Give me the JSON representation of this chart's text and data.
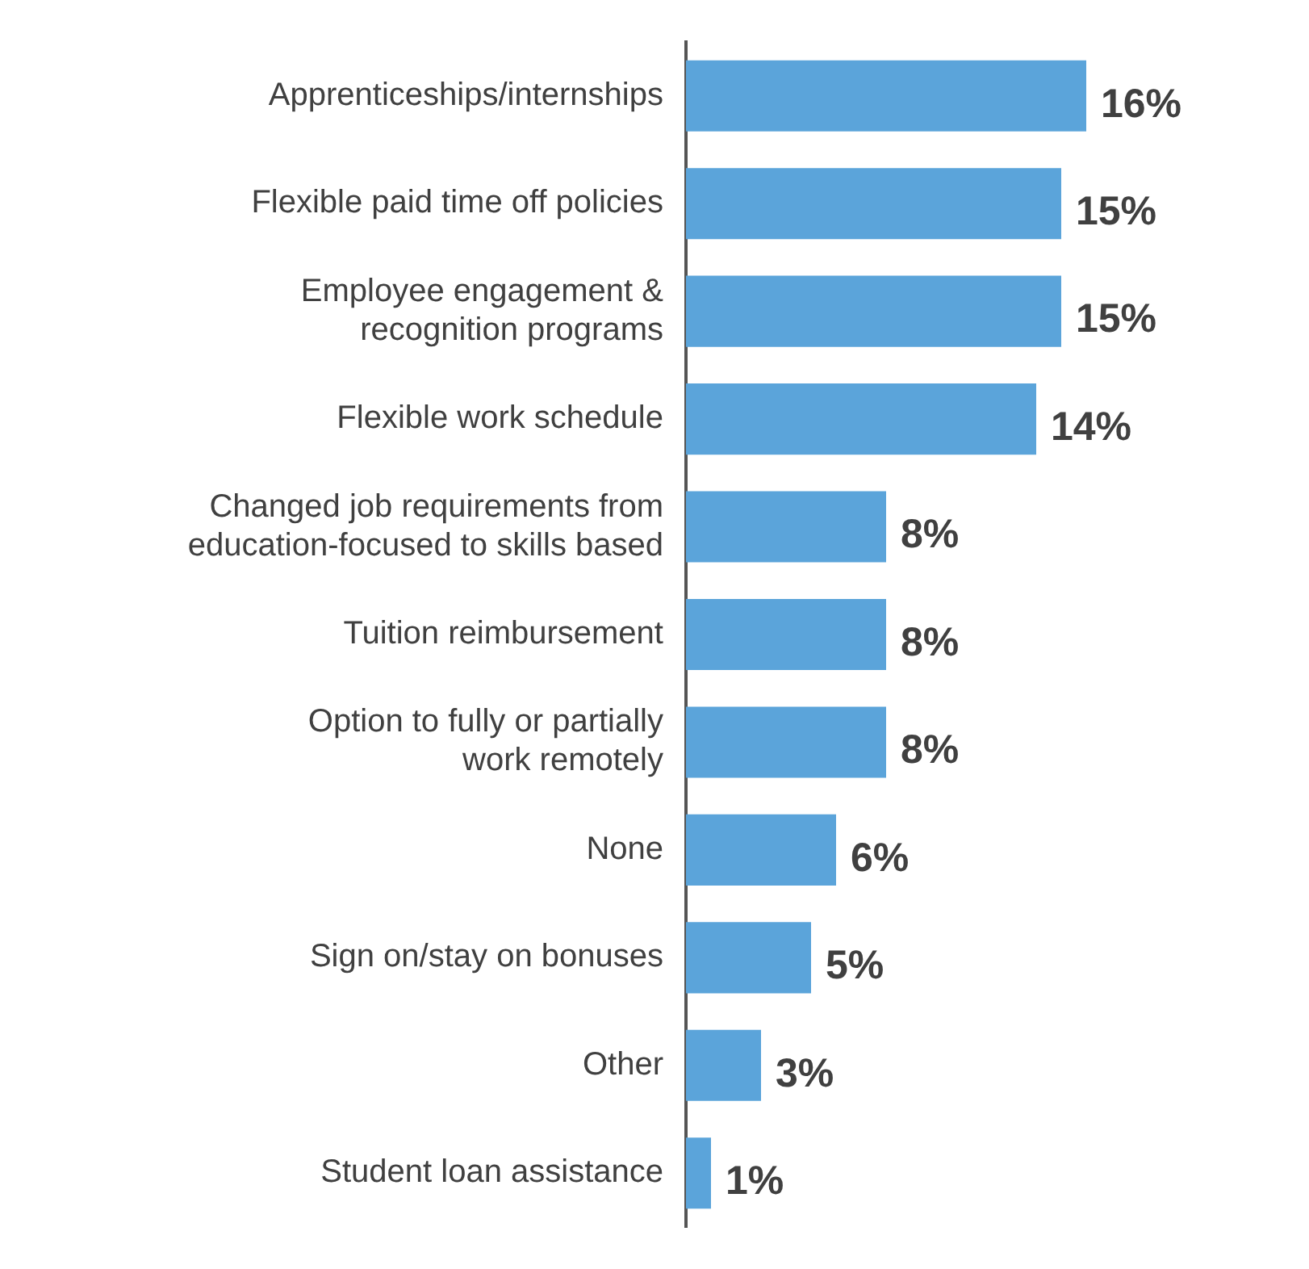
{
  "chart_data": {
    "type": "bar",
    "orientation": "horizontal",
    "categories": [
      "Apprenticeships/internships",
      "Flexible paid time off policies",
      "Employee engagement &\nrecognition programs",
      "Flexible work schedule",
      "Changed job requirements from\neducation-focused to skills based",
      "Tuition reimbursement",
      "Option to fully or partially\nwork remotely",
      "None",
      "Sign on/stay on bonuses",
      "Other",
      "Student loan assistance"
    ],
    "values": [
      16,
      15,
      15,
      14,
      8,
      8,
      8,
      6,
      5,
      3,
      1
    ],
    "value_labels": [
      "16%",
      "15%",
      "15%",
      "14%",
      "8%",
      "8%",
      "8%",
      "6%",
      "5%",
      "3%",
      "1%"
    ],
    "color": "#5ba4da",
    "tick_labels": "y"
  }
}
